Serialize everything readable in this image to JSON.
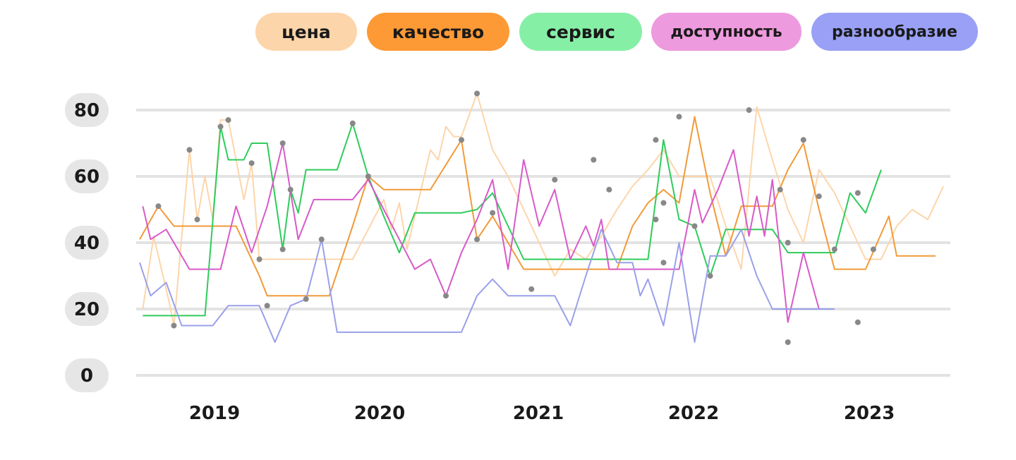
{
  "chart_data": {
    "type": "line",
    "y_ticks": [
      "0",
      "20",
      "40",
      "60",
      "80"
    ],
    "x_ticks": [
      "2019",
      "2020",
      "2021",
      "2022",
      "2023"
    ],
    "ylim": [
      0,
      80
    ],
    "grid": true,
    "legend_position": "top",
    "series": [
      {
        "name": "цена",
        "color": "#fdd5aa",
        "pill_color": "#fdd5aa",
        "opacity": 1,
        "points": [
          [
            2018.55,
            20
          ],
          [
            2018.62,
            42
          ],
          [
            2018.72,
            22
          ],
          [
            2018.75,
            15
          ],
          [
            2018.85,
            68
          ],
          [
            2018.9,
            47
          ],
          [
            2018.95,
            60
          ],
          [
            2019.0,
            47
          ],
          [
            2019.05,
            77
          ],
          [
            2019.1,
            77
          ],
          [
            2019.2,
            53
          ],
          [
            2019.25,
            64
          ],
          [
            2019.3,
            35
          ],
          [
            2019.4,
            35
          ],
          [
            2019.5,
            35
          ],
          [
            2019.75,
            35
          ],
          [
            2019.9,
            35
          ],
          [
            2020.1,
            53
          ],
          [
            2020.15,
            44
          ],
          [
            2020.2,
            52
          ],
          [
            2020.25,
            38
          ],
          [
            2020.4,
            68
          ],
          [
            2020.45,
            65
          ],
          [
            2020.5,
            75
          ],
          [
            2020.55,
            72
          ],
          [
            2020.6,
            72
          ],
          [
            2020.7,
            85
          ],
          [
            2020.8,
            68
          ],
          [
            2020.9,
            60
          ],
          [
            2021.0,
            50
          ],
          [
            2021.1,
            40
          ],
          [
            2021.2,
            30
          ],
          [
            2021.3,
            38
          ],
          [
            2021.4,
            35
          ],
          [
            2021.5,
            42
          ],
          [
            2021.6,
            50
          ],
          [
            2021.7,
            57
          ],
          [
            2021.8,
            62
          ],
          [
            2021.9,
            68
          ],
          [
            2022.0,
            60
          ],
          [
            2022.1,
            60
          ],
          [
            2022.2,
            60
          ],
          [
            2022.3,
            45
          ],
          [
            2022.4,
            32
          ],
          [
            2022.5,
            81
          ],
          [
            2022.6,
            65
          ],
          [
            2022.7,
            50
          ],
          [
            2022.8,
            40
          ],
          [
            2022.9,
            62
          ],
          [
            2023.0,
            55
          ],
          [
            2023.1,
            45
          ],
          [
            2023.2,
            35
          ],
          [
            2023.3,
            35
          ],
          [
            2023.4,
            45
          ],
          [
            2023.5,
            50
          ],
          [
            2023.6,
            47
          ],
          [
            2023.7,
            57
          ]
        ]
      },
      {
        "name": "качество",
        "color": "#f29a38",
        "pill_color": "#fd9a35",
        "opacity": 1,
        "points": [
          [
            2018.53,
            41
          ],
          [
            2018.65,
            51
          ],
          [
            2018.75,
            45
          ],
          [
            2018.9,
            45
          ],
          [
            2019.0,
            45
          ],
          [
            2019.15,
            45
          ],
          [
            2019.3,
            30
          ],
          [
            2019.35,
            24
          ],
          [
            2019.5,
            24
          ],
          [
            2019.6,
            24
          ],
          [
            2019.75,
            24
          ],
          [
            2019.9,
            45
          ],
          [
            2020.0,
            60
          ],
          [
            2020.1,
            56
          ],
          [
            2020.2,
            56
          ],
          [
            2020.3,
            56
          ],
          [
            2020.4,
            56
          ],
          [
            2020.6,
            71
          ],
          [
            2020.7,
            41
          ],
          [
            2020.8,
            48
          ],
          [
            2020.9,
            40
          ],
          [
            2021.0,
            32
          ],
          [
            2021.1,
            32
          ],
          [
            2021.2,
            32
          ],
          [
            2021.3,
            32
          ],
          [
            2021.4,
            32
          ],
          [
            2021.5,
            32
          ],
          [
            2021.6,
            32
          ],
          [
            2021.7,
            45
          ],
          [
            2021.8,
            52
          ],
          [
            2021.9,
            56
          ],
          [
            2022.0,
            52
          ],
          [
            2022.1,
            78
          ],
          [
            2022.2,
            55
          ],
          [
            2022.3,
            36
          ],
          [
            2022.4,
            51
          ],
          [
            2022.5,
            51
          ],
          [
            2022.6,
            51
          ],
          [
            2022.7,
            62
          ],
          [
            2022.8,
            70
          ],
          [
            2022.9,
            50
          ],
          [
            2023.0,
            32
          ],
          [
            2023.1,
            32
          ],
          [
            2023.2,
            32
          ],
          [
            2023.35,
            48
          ],
          [
            2023.4,
            36
          ],
          [
            2023.5,
            36
          ],
          [
            2023.65,
            36
          ]
        ]
      },
      {
        "name": "сервис",
        "color": "#2ecc5a",
        "pill_color": "#86efa6",
        "opacity": 1,
        "points": [
          [
            2018.55,
            18
          ],
          [
            2018.8,
            18
          ],
          [
            2018.95,
            18
          ],
          [
            2019.05,
            75
          ],
          [
            2019.1,
            65
          ],
          [
            2019.2,
            65
          ],
          [
            2019.25,
            70
          ],
          [
            2019.35,
            70
          ],
          [
            2019.45,
            38
          ],
          [
            2019.5,
            56
          ],
          [
            2019.55,
            49
          ],
          [
            2019.6,
            62
          ],
          [
            2019.7,
            62
          ],
          [
            2019.8,
            62
          ],
          [
            2019.9,
            76
          ],
          [
            2020.0,
            60
          ],
          [
            2020.1,
            48
          ],
          [
            2020.2,
            37
          ],
          [
            2020.3,
            49
          ],
          [
            2020.4,
            49
          ],
          [
            2020.5,
            49
          ],
          [
            2020.6,
            49
          ],
          [
            2020.7,
            50
          ],
          [
            2020.8,
            55
          ],
          [
            2020.9,
            45
          ],
          [
            2021.0,
            35
          ],
          [
            2021.1,
            35
          ],
          [
            2021.2,
            35
          ],
          [
            2021.3,
            35
          ],
          [
            2021.4,
            35
          ],
          [
            2021.5,
            35
          ],
          [
            2021.6,
            35
          ],
          [
            2021.7,
            35
          ],
          [
            2021.8,
            35
          ],
          [
            2021.9,
            71
          ],
          [
            2022.0,
            47
          ],
          [
            2022.1,
            45
          ],
          [
            2022.2,
            30
          ],
          [
            2022.3,
            44
          ],
          [
            2022.4,
            44
          ],
          [
            2022.5,
            44
          ],
          [
            2022.6,
            44
          ],
          [
            2022.7,
            37
          ],
          [
            2022.8,
            37
          ],
          [
            2022.9,
            37
          ],
          [
            2023.0,
            37
          ],
          [
            2023.1,
            55
          ],
          [
            2023.2,
            49
          ],
          [
            2023.3,
            62
          ]
        ]
      },
      {
        "name": "доступность",
        "color": "#d85ac8",
        "pill_color": "#ee9ade",
        "opacity": 1,
        "points": [
          [
            2018.55,
            51
          ],
          [
            2018.6,
            41
          ],
          [
            2018.7,
            44
          ],
          [
            2018.85,
            32
          ],
          [
            2018.95,
            32
          ],
          [
            2019.05,
            32
          ],
          [
            2019.15,
            51
          ],
          [
            2019.25,
            37
          ],
          [
            2019.35,
            51
          ],
          [
            2019.45,
            70
          ],
          [
            2019.55,
            41
          ],
          [
            2019.65,
            53
          ],
          [
            2019.8,
            53
          ],
          [
            2019.9,
            53
          ],
          [
            2020.0,
            59
          ],
          [
            2020.1,
            50
          ],
          [
            2020.2,
            41
          ],
          [
            2020.3,
            32
          ],
          [
            2020.4,
            35
          ],
          [
            2020.5,
            24
          ],
          [
            2020.6,
            37
          ],
          [
            2020.7,
            47
          ],
          [
            2020.8,
            59
          ],
          [
            2020.9,
            32
          ],
          [
            2021.0,
            65
          ],
          [
            2021.1,
            45
          ],
          [
            2021.2,
            56
          ],
          [
            2021.3,
            35
          ],
          [
            2021.4,
            45
          ],
          [
            2021.45,
            39
          ],
          [
            2021.5,
            47
          ],
          [
            2021.55,
            32
          ],
          [
            2021.7,
            32
          ],
          [
            2021.8,
            32
          ],
          [
            2021.9,
            32
          ],
          [
            2022.0,
            32
          ],
          [
            2022.1,
            56
          ],
          [
            2022.15,
            46
          ],
          [
            2022.25,
            56
          ],
          [
            2022.35,
            68
          ],
          [
            2022.45,
            42
          ],
          [
            2022.5,
            54
          ],
          [
            2022.55,
            42
          ],
          [
            2022.6,
            59
          ],
          [
            2022.7,
            16
          ],
          [
            2022.8,
            37
          ],
          [
            2022.9,
            20
          ]
        ]
      },
      {
        "name": "разнообразие",
        "color": "#9aa0ea",
        "pill_color": "#99a0f5",
        "opacity": 1,
        "points": [
          [
            2018.53,
            34
          ],
          [
            2018.6,
            24
          ],
          [
            2018.7,
            28
          ],
          [
            2018.8,
            15
          ],
          [
            2018.9,
            15
          ],
          [
            2019.0,
            15
          ],
          [
            2019.1,
            21
          ],
          [
            2019.2,
            21
          ],
          [
            2019.3,
            21
          ],
          [
            2019.4,
            10
          ],
          [
            2019.5,
            21
          ],
          [
            2019.6,
            23
          ],
          [
            2019.7,
            41
          ],
          [
            2019.8,
            13
          ],
          [
            2019.9,
            13
          ],
          [
            2020.0,
            13
          ],
          [
            2020.1,
            13
          ],
          [
            2020.2,
            13
          ],
          [
            2020.3,
            13
          ],
          [
            2020.4,
            13
          ],
          [
            2020.5,
            13
          ],
          [
            2020.6,
            13
          ],
          [
            2020.7,
            24
          ],
          [
            2020.8,
            29
          ],
          [
            2020.9,
            24
          ],
          [
            2021.0,
            24
          ],
          [
            2021.1,
            24
          ],
          [
            2021.2,
            24
          ],
          [
            2021.3,
            15
          ],
          [
            2021.4,
            30
          ],
          [
            2021.5,
            44
          ],
          [
            2021.6,
            34
          ],
          [
            2021.7,
            34
          ],
          [
            2021.75,
            24
          ],
          [
            2021.8,
            29
          ],
          [
            2021.9,
            15
          ],
          [
            2022.0,
            40
          ],
          [
            2022.1,
            10
          ],
          [
            2022.2,
            36
          ],
          [
            2022.3,
            36
          ],
          [
            2022.4,
            44
          ],
          [
            2022.5,
            30
          ],
          [
            2022.6,
            20
          ],
          [
            2022.7,
            20
          ],
          [
            2022.8,
            20
          ],
          [
            2022.9,
            20
          ],
          [
            2023.0,
            20
          ]
        ]
      }
    ],
    "markers": [
      [
        2018.65,
        51
      ],
      [
        2018.75,
        15
      ],
      [
        2018.85,
        68
      ],
      [
        2018.9,
        47
      ],
      [
        2019.05,
        75
      ],
      [
        2019.1,
        77
      ],
      [
        2019.25,
        64
      ],
      [
        2019.3,
        35
      ],
      [
        2019.35,
        21
      ],
      [
        2019.45,
        70
      ],
      [
        2019.5,
        56
      ],
      [
        2019.45,
        38
      ],
      [
        2019.6,
        23
      ],
      [
        2019.7,
        41
      ],
      [
        2020.0,
        60
      ],
      [
        2019.9,
        76
      ],
      [
        2020.6,
        71
      ],
      [
        2020.7,
        85
      ],
      [
        2020.7,
        41
      ],
      [
        2020.8,
        49
      ],
      [
        2020.5,
        24
      ],
      [
        2021.05,
        26
      ],
      [
        2021.2,
        59
      ],
      [
        2021.45,
        65
      ],
      [
        2021.55,
        56
      ],
      [
        2021.85,
        71
      ],
      [
        2021.85,
        47
      ],
      [
        2021.9,
        52
      ],
      [
        2021.9,
        34
      ],
      [
        2022.0,
        78
      ],
      [
        2022.1,
        45
      ],
      [
        2022.2,
        30
      ],
      [
        2022.45,
        80
      ],
      [
        2022.65,
        56
      ],
      [
        2022.7,
        40
      ],
      [
        2022.7,
        10
      ],
      [
        2022.8,
        71
      ],
      [
        2022.9,
        54
      ],
      [
        2023.0,
        38
      ],
      [
        2023.15,
        55
      ],
      [
        2023.15,
        16
      ],
      [
        2023.25,
        38
      ]
    ],
    "x_range": [
      2018.53,
      2023.7
    ]
  }
}
